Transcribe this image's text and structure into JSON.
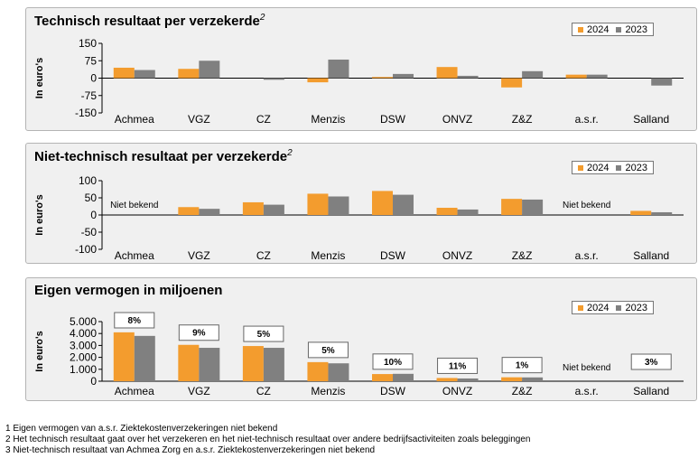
{
  "colors": {
    "y2024": "#f39c2e",
    "y2023": "#808080"
  },
  "chart_data": [
    {
      "type": "bar",
      "title": "Technisch resultaat per verzekerde",
      "title_sup": "2",
      "ylabel": "In euro's",
      "ylim": [
        -150,
        150
      ],
      "yticks": [
        "150",
        "75",
        "0",
        "-75",
        "-150"
      ],
      "legend_position": "top-right",
      "categories": [
        "Achmea",
        "VGZ",
        "CZ",
        "Menzis",
        "DSW",
        "ONVZ",
        "Z&Z",
        "a.s.r.",
        "Salland"
      ],
      "series": [
        {
          "name": "2024",
          "values": [
            45,
            40,
            null,
            -18,
            5,
            48,
            -40,
            15,
            null
          ]
        },
        {
          "name": "2023",
          "values": [
            35,
            75,
            -7,
            80,
            18,
            10,
            30,
            15,
            -32
          ]
        }
      ],
      "annotations": []
    },
    {
      "type": "bar",
      "title": "Niet-technisch resultaat per verzekerde",
      "title_sup": "2",
      "ylabel": "In euro's",
      "ylim": [
        -100,
        100
      ],
      "yticks": [
        "100",
        "50",
        "0",
        "-50",
        "-100"
      ],
      "legend_position": "top-right",
      "categories": [
        "Achmea",
        "VGZ",
        "CZ",
        "Menzis",
        "DSW",
        "ONVZ",
        "Z&Z",
        "a.s.r.",
        "Salland"
      ],
      "series": [
        {
          "name": "2024",
          "values": [
            null,
            23,
            37,
            62,
            70,
            21,
            47,
            null,
            12
          ]
        },
        {
          "name": "2023",
          "values": [
            null,
            18,
            30,
            54,
            59,
            16,
            45,
            null,
            8
          ]
        }
      ],
      "annotations": [
        {
          "category_index": 0,
          "text": "Niet bekend"
        },
        {
          "category_index": 7,
          "text": "Niet bekend"
        }
      ]
    },
    {
      "type": "bar",
      "title": "Eigen vermogen in miljoenen",
      "title_sup": "",
      "ylabel": "In euro's",
      "ylim": [
        0,
        5000
      ],
      "yticks": [
        "5.000",
        "4.000",
        "3.000",
        "2.000",
        "1.000",
        "0"
      ],
      "legend_position": "top-right",
      "categories": [
        "Achmea",
        "VGZ",
        "CZ",
        "Menzis",
        "DSW",
        "ONVZ",
        "Z&Z",
        "a.s.r.",
        "Salland"
      ],
      "series": [
        {
          "name": "2024",
          "values": [
            4100,
            3050,
            2950,
            1600,
            600,
            270,
            330,
            null,
            null
          ]
        },
        {
          "name": "2023",
          "values": [
            3800,
            2800,
            2800,
            1500,
            620,
            230,
            320,
            null,
            null
          ]
        }
      ],
      "boxes": [
        "8%",
        "9%",
        "5%",
        "5%",
        "10%",
        "11%",
        "1%",
        null,
        "3%"
      ],
      "annotations": [
        {
          "category_index": 7,
          "text": "Niet bekend"
        }
      ]
    }
  ],
  "footnotes": [
    "1 Eigen vermogen van a.s.r. Ziektekostenverzekeringen niet bekend",
    "2 Het technisch resultaat gaat over het verzekeren en het niet-technisch resultaat over andere bedrijfsactiviteiten zoals beleggingen",
    "3 Niet-technisch resultaat van Achmea Zorg en a.s.r. Ziektekostenverzekeringen niet bekend"
  ]
}
